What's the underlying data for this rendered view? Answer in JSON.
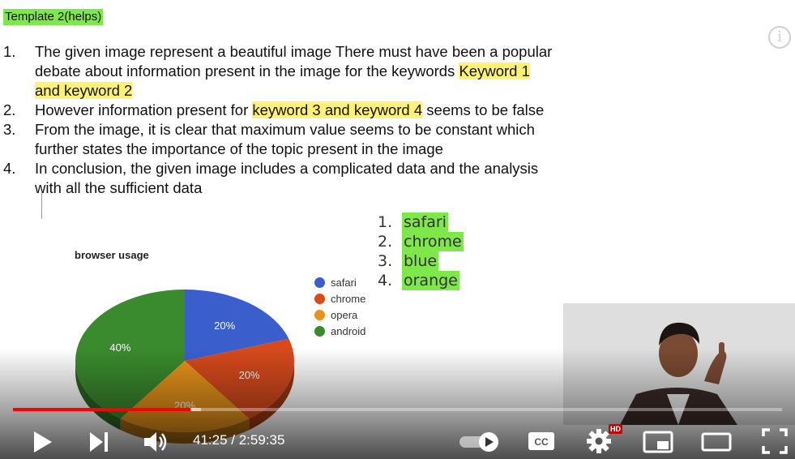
{
  "template_tag": "Template 2(helps)",
  "info_icon": "info-icon",
  "points": [
    {
      "num": "1.",
      "pre": "The given image represent a beautiful image There must have been a popular debate about information present in the image for the keywords ",
      "hl": "Keyword 1 and keyword 2",
      "post": ""
    },
    {
      "num": "2.",
      "pre": "However information present for ",
      "hl": "keyword 3 and keyword 4",
      "post": " seems to be false"
    },
    {
      "num": "3.",
      "pre": "From the image, it is clear that maximum value seems to be constant which further states the importance of the topic present in the image",
      "hl": "",
      "post": ""
    },
    {
      "num": "4.",
      "pre": "In conclusion, the given image includes a complicated data and the analysis with all the sufficient data",
      "hl": "",
      "post": ""
    }
  ],
  "right_list": [
    {
      "num": "1.",
      "label": "safari"
    },
    {
      "num": "2.",
      "label": "chrome"
    },
    {
      "num": "3.",
      "label": "blue"
    },
    {
      "num": "4.",
      "label": "orange"
    }
  ],
  "chart_data": {
    "type": "pie",
    "title": "browser usage",
    "categories": [
      "safari",
      "chrome",
      "opera",
      "android"
    ],
    "values": [
      20,
      20,
      20,
      40
    ],
    "labels": [
      "20%",
      "20%",
      "20%",
      "40%"
    ],
    "colors": [
      "#3a5fcd",
      "#d64a1c",
      "#e8941a",
      "#3a8a2e"
    ],
    "legend_position": "right"
  },
  "player": {
    "current_time": "41:25",
    "separator": " / ",
    "duration": "2:59:35",
    "played_fraction": 0.231,
    "buffered_fraction": 0.244,
    "hd_badge": "HD",
    "cc_label": "CC",
    "icons": [
      "play-icon",
      "next-icon",
      "volume-icon",
      "autoplay-toggle",
      "captions-icon",
      "settings-icon",
      "miniplayer-icon",
      "theater-icon",
      "fullscreen-icon"
    ]
  }
}
